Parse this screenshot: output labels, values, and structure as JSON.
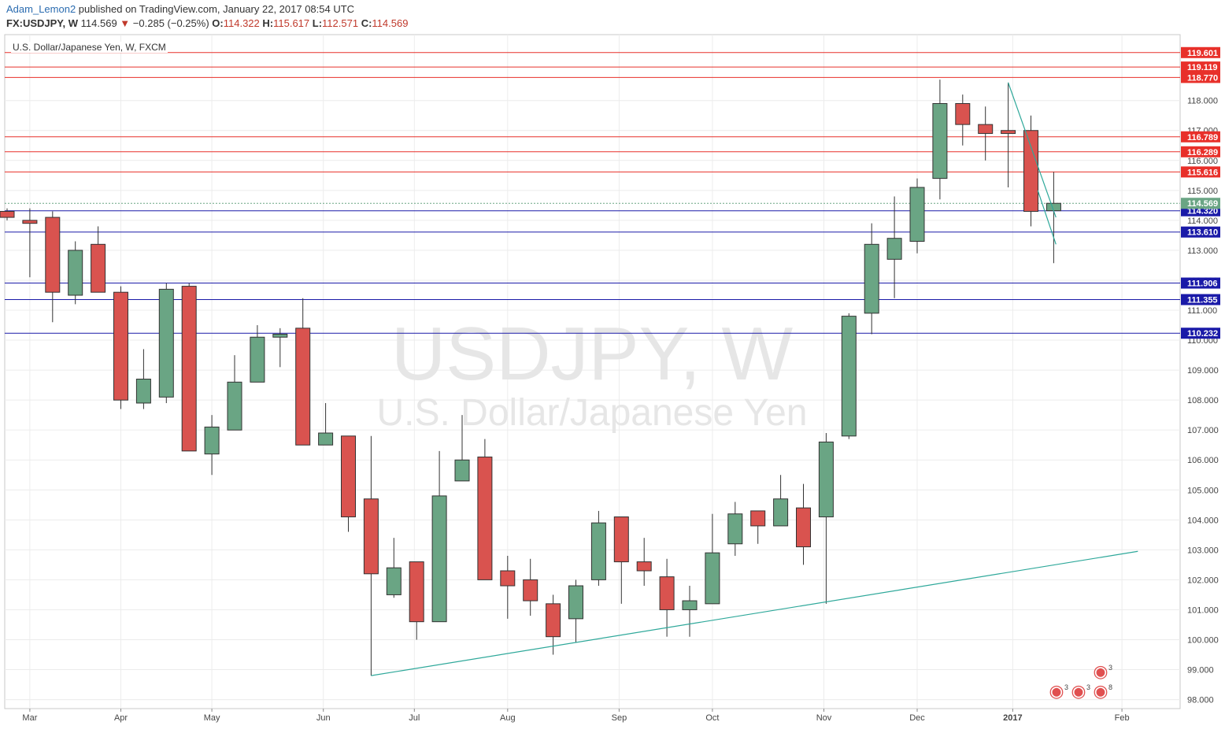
{
  "header": {
    "user": "Adam_Lemon2",
    "published": "published on TradingView.com, January 22, 2017 08:54 UTC",
    "symbol": "FX:USDJPY, W",
    "last": "114.569",
    "change_arrow": "▼",
    "change": "−0.285 (−0.25%)",
    "o_label": "O:",
    "o": "114.322",
    "h_label": "H:",
    "h": "115.617",
    "l_label": "L:",
    "l": "112.571",
    "c_label": "C:",
    "c": "114.569"
  },
  "legend": "U.S. Dollar/Japanese Yen, W, FXCM",
  "watermark": {
    "line1": "USDJPY, W",
    "line2": "U.S. Dollar/Japanese Yen"
  },
  "colors": {
    "up": "#6aa584",
    "down": "#d9534f",
    "red_line": "#e8302a",
    "blue_line": "#1a1aa8",
    "trend": "#2ea89a"
  },
  "chart_data": {
    "type": "candlestick",
    "y_range": [
      97.7,
      120.2
    ],
    "y_ticks": [
      "98.000",
      "99.000",
      "100.000",
      "101.000",
      "102.000",
      "103.000",
      "104.000",
      "105.000",
      "106.000",
      "107.000",
      "108.000",
      "109.000",
      "110.000",
      "111.000",
      "112.000",
      "113.000",
      "114.000",
      "115.000",
      "116.000",
      "117.000",
      "118.000"
    ],
    "x_labels": [
      "Mar",
      "Apr",
      "May",
      "Jun",
      "Jul",
      "Aug",
      "Sep",
      "Oct",
      "Nov",
      "Dec",
      "2017",
      "Feb"
    ],
    "candles": [
      {
        "o": 114.3,
        "h": 114.4,
        "l": 114.0,
        "c": 114.1
      },
      {
        "o": 114.0,
        "h": 114.4,
        "l": 112.1,
        "c": 113.9
      },
      {
        "o": 114.1,
        "h": 114.3,
        "l": 110.6,
        "c": 111.6
      },
      {
        "o": 111.5,
        "h": 113.3,
        "l": 111.2,
        "c": 113.0
      },
      {
        "o": 113.2,
        "h": 113.8,
        "l": 111.6,
        "c": 111.6
      },
      {
        "o": 111.6,
        "h": 111.8,
        "l": 107.7,
        "c": 108.0
      },
      {
        "o": 107.9,
        "h": 109.7,
        "l": 107.7,
        "c": 108.7
      },
      {
        "o": 108.1,
        "h": 111.9,
        "l": 107.9,
        "c": 111.7
      },
      {
        "o": 111.8,
        "h": 111.9,
        "l": 106.3,
        "c": 106.3
      },
      {
        "o": 106.2,
        "h": 107.5,
        "l": 105.5,
        "c": 107.1
      },
      {
        "o": 107.0,
        "h": 109.5,
        "l": 107.0,
        "c": 108.6
      },
      {
        "o": 108.6,
        "h": 110.5,
        "l": 108.6,
        "c": 110.1
      },
      {
        "o": 110.1,
        "h": 110.4,
        "l": 109.1,
        "c": 110.2
      },
      {
        "o": 110.4,
        "h": 111.4,
        "l": 106.5,
        "c": 106.5
      },
      {
        "o": 106.5,
        "h": 107.9,
        "l": 106.5,
        "c": 106.9
      },
      {
        "o": 106.8,
        "h": 106.8,
        "l": 103.6,
        "c": 104.1
      },
      {
        "o": 104.7,
        "h": 106.8,
        "l": 98.8,
        "c": 102.2
      },
      {
        "o": 101.5,
        "h": 103.4,
        "l": 101.4,
        "c": 102.4
      },
      {
        "o": 102.6,
        "h": 102.6,
        "l": 100.0,
        "c": 100.6
      },
      {
        "o": 100.6,
        "h": 106.3,
        "l": 100.6,
        "c": 104.8
      },
      {
        "o": 105.3,
        "h": 107.5,
        "l": 105.3,
        "c": 106.0
      },
      {
        "o": 106.1,
        "h": 106.7,
        "l": 102.0,
        "c": 102.0
      },
      {
        "o": 102.3,
        "h": 102.8,
        "l": 100.7,
        "c": 101.8
      },
      {
        "o": 102.0,
        "h": 102.7,
        "l": 100.8,
        "c": 101.3
      },
      {
        "o": 101.2,
        "h": 101.5,
        "l": 99.5,
        "c": 100.1
      },
      {
        "o": 100.7,
        "h": 102.0,
        "l": 99.9,
        "c": 101.8
      },
      {
        "o": 102.0,
        "h": 104.3,
        "l": 101.8,
        "c": 103.9
      },
      {
        "o": 104.1,
        "h": 104.1,
        "l": 101.2,
        "c": 102.6
      },
      {
        "o": 102.6,
        "h": 103.4,
        "l": 101.8,
        "c": 102.3
      },
      {
        "o": 102.1,
        "h": 102.7,
        "l": 100.1,
        "c": 101.0
      },
      {
        "o": 101.0,
        "h": 101.8,
        "l": 100.1,
        "c": 101.3
      },
      {
        "o": 101.2,
        "h": 104.2,
        "l": 101.2,
        "c": 102.9
      },
      {
        "o": 103.2,
        "h": 104.6,
        "l": 102.8,
        "c": 104.2
      },
      {
        "o": 104.3,
        "h": 104.3,
        "l": 103.2,
        "c": 103.8
      },
      {
        "o": 103.8,
        "h": 105.5,
        "l": 103.8,
        "c": 104.7
      },
      {
        "o": 104.4,
        "h": 105.2,
        "l": 102.5,
        "c": 103.1
      },
      {
        "o": 104.1,
        "h": 106.9,
        "l": 101.2,
        "c": 106.6
      },
      {
        "o": 106.8,
        "h": 110.9,
        "l": 106.7,
        "c": 110.8
      },
      {
        "o": 110.9,
        "h": 113.9,
        "l": 110.2,
        "c": 113.2
      },
      {
        "o": 112.7,
        "h": 114.8,
        "l": 111.4,
        "c": 113.4
      },
      {
        "o": 113.3,
        "h": 115.4,
        "l": 112.9,
        "c": 115.1
      },
      {
        "o": 115.4,
        "h": 118.7,
        "l": 114.7,
        "c": 117.9
      },
      {
        "o": 117.9,
        "h": 118.2,
        "l": 116.5,
        "c": 117.2
      },
      {
        "o": 117.2,
        "h": 117.8,
        "l": 116.0,
        "c": 116.9
      },
      {
        "o": 117.0,
        "h": 118.6,
        "l": 115.1,
        "c": 116.9
      },
      {
        "o": 117.0,
        "h": 117.5,
        "l": 113.8,
        "c": 114.3
      },
      {
        "o": 114.322,
        "h": 115.617,
        "l": 112.571,
        "c": 114.569
      }
    ],
    "price_levels": [
      {
        "value": 119.601,
        "label": "119.601",
        "kind": "resistance"
      },
      {
        "value": 119.119,
        "label": "119.119",
        "kind": "resistance"
      },
      {
        "value": 118.77,
        "label": "118.770",
        "kind": "resistance"
      },
      {
        "value": 116.789,
        "label": "116.789",
        "kind": "resistance"
      },
      {
        "value": 116.289,
        "label": "116.289",
        "kind": "resistance"
      },
      {
        "value": 115.616,
        "label": "115.616",
        "kind": "resistance"
      },
      {
        "value": 114.32,
        "label": "114.320",
        "kind": "support"
      },
      {
        "value": 113.61,
        "label": "113.610",
        "kind": "support"
      },
      {
        "value": 111.906,
        "label": "111.906",
        "kind": "support"
      },
      {
        "value": 111.355,
        "label": "111.355",
        "kind": "support"
      },
      {
        "value": 110.232,
        "label": "110.232",
        "kind": "support"
      }
    ],
    "last_price": {
      "value": 114.569,
      "label": "114.569"
    },
    "trendlines": [
      {
        "from": {
          "bar": 16,
          "price": 98.8
        },
        "to": {
          "bar": 49.7,
          "price": 102.95
        }
      },
      {
        "from": {
          "bar": 44,
          "price": 118.6
        },
        "to": {
          "bar": 46.1,
          "price": 114.1
        }
      },
      {
        "from": {
          "bar": 45.3,
          "price": 115.0
        },
        "to": {
          "bar": 46.1,
          "price": 113.2
        }
      }
    ],
    "event_markers": [
      {
        "symbol": "◉",
        "count": "3"
      },
      {
        "symbol": "◉",
        "count": "3"
      },
      {
        "symbol": "◉",
        "count": "3"
      },
      {
        "symbol": "◉",
        "count": "8"
      }
    ]
  }
}
